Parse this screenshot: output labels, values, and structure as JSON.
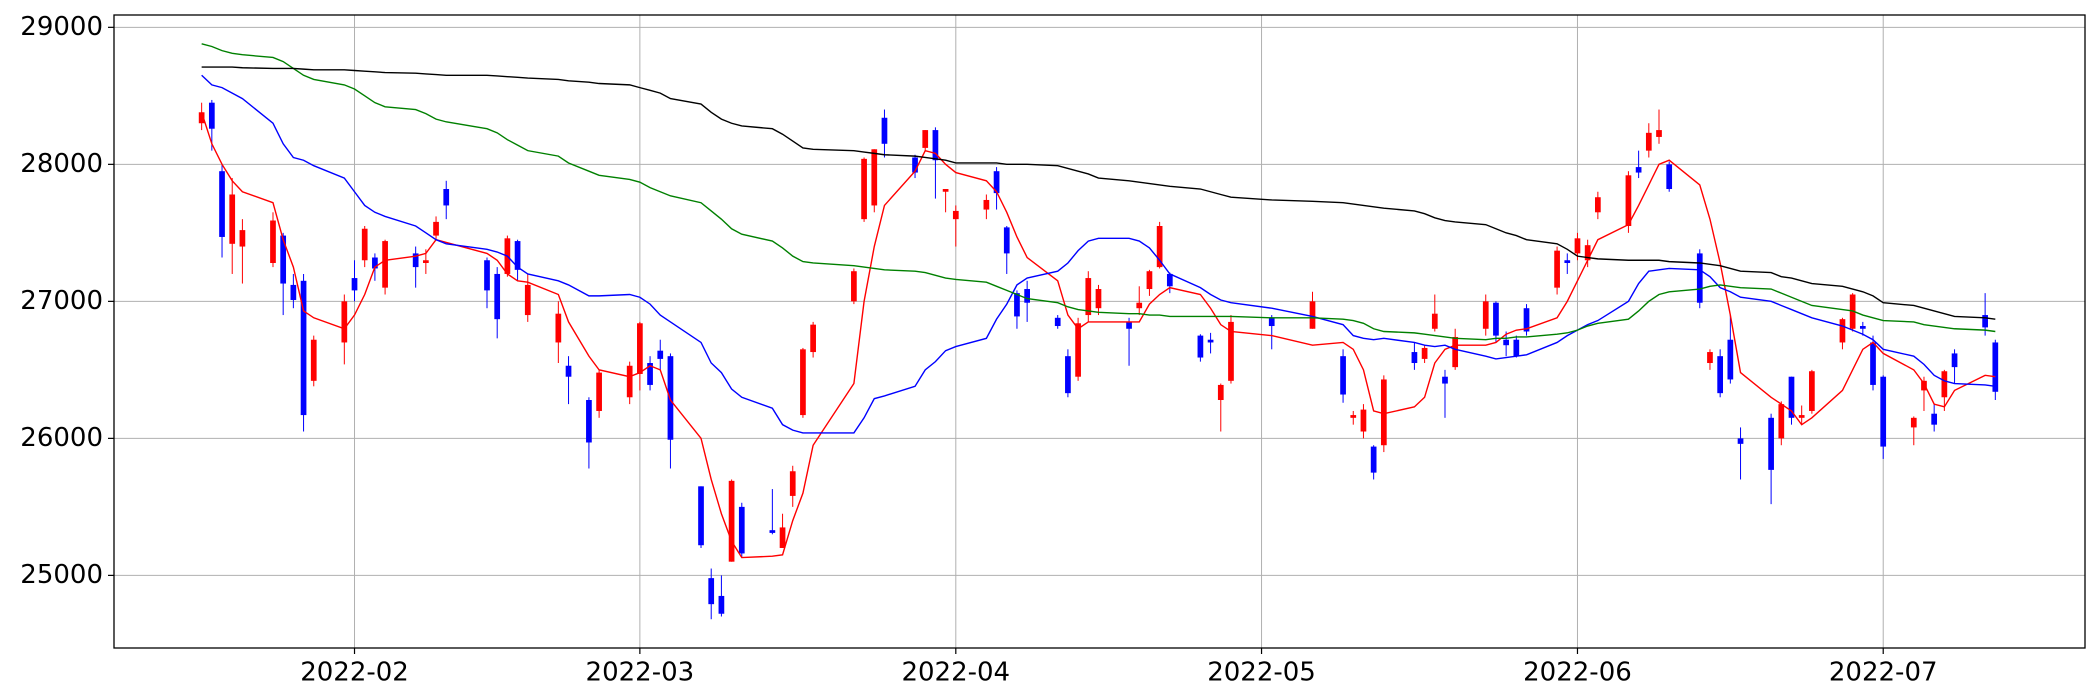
{
  "chart_data": {
    "type": "candlestick",
    "grid": true,
    "up_color": "#ff0000",
    "down_color": "#0000ff",
    "xlim": [
      7.4,
      200.8
    ],
    "ylim": [
      24470,
      29090
    ],
    "xticks": [
      {
        "value": 31,
        "label": "2022-02"
      },
      {
        "value": 59,
        "label": "2022-03"
      },
      {
        "value": 90,
        "label": "2022-04"
      },
      {
        "value": 120,
        "label": "2022-05"
      },
      {
        "value": 151,
        "label": "2022-06"
      },
      {
        "value": 181,
        "label": "2022-07"
      }
    ],
    "yticks": [
      25000,
      26000,
      27000,
      28000,
      29000
    ],
    "x": [
      16,
      17,
      18,
      19,
      20,
      23,
      24,
      25,
      26,
      27,
      30,
      31,
      32,
      33,
      34,
      37,
      38,
      39,
      40,
      44,
      45,
      46,
      47,
      48,
      51,
      52,
      54,
      55,
      58,
      59,
      60,
      61,
      62,
      65,
      66,
      67,
      68,
      69,
      72,
      73,
      74,
      75,
      76,
      80,
      81,
      82,
      83,
      86,
      87,
      88,
      89,
      90,
      93,
      94,
      95,
      96,
      97,
      100,
      101,
      102,
      103,
      104,
      107,
      108,
      109,
      110,
      111,
      114,
      115,
      116,
      117,
      121,
      125,
      128,
      129,
      130,
      131,
      132,
      135,
      136,
      137,
      138,
      139,
      142,
      143,
      144,
      145,
      146,
      149,
      150,
      151,
      152,
      153,
      156,
      157,
      158,
      159,
      160,
      163,
      164,
      165,
      166,
      167,
      170,
      171,
      172,
      173,
      174,
      177,
      178,
      179,
      180,
      181,
      184,
      185,
      186,
      187,
      188,
      191,
      192
    ],
    "open": [
      28300,
      28450,
      27950,
      27420,
      27400,
      27280,
      27480,
      27120,
      27150,
      26420,
      26700,
      27170,
      27300,
      27320,
      27100,
      27350,
      27280,
      27480,
      27820,
      27300,
      27200,
      27200,
      27440,
      26900,
      26700,
      26530,
      26280,
      26200,
      26300,
      26470,
      26550,
      26640,
      26600,
      25650,
      24980,
      24850,
      25100,
      25500,
      25330,
      25200,
      25580,
      26170,
      26630,
      27000,
      27600,
      27700,
      28340,
      28050,
      28120,
      28250,
      27800,
      27600,
      27670,
      27950,
      27540,
      27060,
      27090,
      26880,
      26600,
      26450,
      26900,
      26950,
      26850,
      26950,
      27090,
      27250,
      27200,
      26750,
      26720,
      26280,
      26420,
      26880,
      26800,
      26600,
      26150,
      26050,
      25940,
      25950,
      26630,
      26580,
      26800,
      26450,
      26520,
      26800,
      26990,
      26720,
      26720,
      26950,
      27100,
      27300,
      27350,
      27300,
      27650,
      27550,
      27980,
      28100,
      28200,
      28000,
      27350,
      26550,
      26600,
      26720,
      26000,
      26150,
      26000,
      26450,
      26150,
      26200,
      26700,
      26800,
      26820,
      26700,
      26450,
      26080,
      26350,
      26180,
      26300,
      26620,
      26900,
      26700
    ],
    "high": [
      28450,
      28470,
      28000,
      27900,
      27600,
      27650,
      27500,
      27200,
      27200,
      26750,
      27050,
      27300,
      27550,
      27350,
      27450,
      27400,
      27380,
      27620,
      27880,
      27320,
      27250,
      27480,
      27450,
      27200,
      27000,
      26600,
      26300,
      26500,
      26560,
      26850,
      26600,
      26720,
      26620,
      25650,
      25050,
      25000,
      25700,
      25530,
      25630,
      25450,
      25800,
      26660,
      26850,
      27240,
      28050,
      28110,
      28400,
      28070,
      28250,
      28270,
      27820,
      27700,
      27780,
      27980,
      27550,
      27080,
      27150,
      26900,
      26650,
      26880,
      27220,
      27120,
      26880,
      27110,
      27230,
      27580,
      27210,
      26760,
      26770,
      26400,
      26900,
      26900,
      27070,
      26650,
      26200,
      26250,
      25950,
      26460,
      26700,
      26680,
      27050,
      26500,
      26800,
      27050,
      27000,
      26780,
      26750,
      26980,
      27400,
      27350,
      27500,
      27450,
      27800,
      27950,
      28100,
      28300,
      28400,
      28020,
      27380,
      26650,
      26650,
      26900,
      26080,
      26180,
      26270,
      26450,
      26240,
      26500,
      26880,
      27060,
      26850,
      26750,
      26460,
      26160,
      26450,
      26250,
      26500,
      26650,
      27060,
      26720
    ],
    "low": [
      28250,
      28100,
      27320,
      27200,
      27130,
      27250,
      26900,
      26950,
      26050,
      26380,
      26540,
      27000,
      27250,
      27150,
      27050,
      27100,
      27200,
      27450,
      27600,
      26950,
      26730,
      27180,
      27150,
      26850,
      26550,
      26250,
      25780,
      26150,
      26250,
      26350,
      26350,
      26500,
      25780,
      25200,
      24680,
      24700,
      25100,
      25130,
      25300,
      25200,
      25500,
      26150,
      26590,
      26980,
      27580,
      27650,
      28050,
      27900,
      28100,
      27750,
      27650,
      27400,
      27600,
      27670,
      27200,
      26800,
      26850,
      26800,
      26300,
      26420,
      26850,
      26900,
      26530,
      26900,
      27040,
      27240,
      27060,
      26560,
      26620,
      26050,
      26400,
      26650,
      26800,
      26260,
      26100,
      26000,
      25700,
      25900,
      26500,
      26550,
      26780,
      26150,
      26500,
      26750,
      26700,
      26600,
      26590,
      26750,
      27050,
      27200,
      27300,
      27250,
      27600,
      27500,
      27900,
      28050,
      28150,
      27800,
      26950,
      26500,
      26300,
      26400,
      25700,
      25520,
      25950,
      26100,
      26100,
      26180,
      26650,
      26780,
      26750,
      26350,
      25850,
      25950,
      26200,
      26050,
      26200,
      26400,
      26750,
      26280
    ],
    "close": [
      28380,
      28260,
      27470,
      27780,
      27520,
      27590,
      27130,
      27010,
      26170,
      26720,
      27000,
      27080,
      27530,
      27240,
      27440,
      27250,
      27300,
      27580,
      27700,
      27080,
      26870,
      27460,
      27230,
      27120,
      26910,
      26450,
      25970,
      26480,
      26530,
      26840,
      26390,
      26580,
      25990,
      25220,
      24790,
      24720,
      25690,
      25160,
      25310,
      25350,
      25760,
      26650,
      26830,
      27220,
      28040,
      28110,
      28150,
      27940,
      28250,
      28030,
      27820,
      27660,
      27740,
      27790,
      27350,
      26890,
      26990,
      26820,
      26330,
      26840,
      27170,
      27090,
      26800,
      26990,
      27220,
      27550,
      27110,
      26590,
      26700,
      26390,
      26850,
      26820,
      27000,
      26320,
      26170,
      26210,
      25750,
      26430,
      26550,
      26660,
      26910,
      26400,
      26740,
      27000,
      26750,
      26680,
      26600,
      26780,
      27370,
      27280,
      27460,
      27410,
      27760,
      27920,
      27940,
      28230,
      28250,
      27820,
      26990,
      26630,
      26330,
      26430,
      25960,
      25770,
      26250,
      26150,
      26170,
      26490,
      26870,
      27050,
      26800,
      26390,
      25940,
      26150,
      26420,
      26100,
      26490,
      26520,
      26810,
      26340
    ],
    "series": [
      {
        "color": "#ff0000",
        "values": [
          28380,
          28150,
          28000,
          27880,
          27800,
          27720,
          27450,
          27250,
          26930,
          26880,
          26800,
          26900,
          27050,
          27250,
          27300,
          27330,
          27350,
          27450,
          27430,
          27350,
          27300,
          27200,
          27150,
          27140,
          27050,
          26850,
          26600,
          26500,
          26450,
          26480,
          26530,
          26500,
          26280,
          26000,
          25700,
          25450,
          25250,
          25130,
          25140,
          25150,
          25400,
          25600,
          25950,
          26400,
          27000,
          27400,
          27700,
          27950,
          28100,
          28080,
          28000,
          27940,
          27880,
          27800,
          27650,
          27470,
          27320,
          27150,
          26900,
          26800,
          26850,
          26850,
          26850,
          26850,
          26980,
          27050,
          27100,
          27050,
          26950,
          26830,
          26780,
          26750,
          26680,
          26700,
          26650,
          26500,
          26200,
          26180,
          26230,
          26300,
          26550,
          26650,
          26680,
          26680,
          26700,
          26760,
          26790,
          26800,
          26880,
          27000,
          27150,
          27300,
          27450,
          27560,
          27700,
          27850,
          28000,
          28030,
          27850,
          27600,
          27280,
          26900,
          26480,
          26300,
          26250,
          26200,
          26100,
          26150,
          26350,
          26500,
          26650,
          26700,
          26620,
          26500,
          26400,
          26250,
          26230,
          26350,
          26460,
          26450
        ]
      },
      {
        "color": "#0000ff",
        "values": [
          28650,
          28580,
          28560,
          28520,
          28480,
          28300,
          28150,
          28050,
          28030,
          27990,
          27900,
          27800,
          27700,
          27650,
          27620,
          27550,
          27500,
          27450,
          27420,
          27380,
          27360,
          27330,
          27250,
          27200,
          27150,
          27120,
          27040,
          27040,
          27050,
          27030,
          26980,
          26900,
          26850,
          26700,
          26550,
          26480,
          26360,
          26300,
          26220,
          26100,
          26060,
          26040,
          26040,
          26040,
          26150,
          26290,
          26310,
          26380,
          26500,
          26560,
          26640,
          26670,
          26730,
          26870,
          26980,
          27120,
          27170,
          27220,
          27280,
          27370,
          27440,
          27460,
          27460,
          27440,
          27390,
          27300,
          27200,
          27100,
          27050,
          27010,
          26990,
          26950,
          26890,
          26830,
          26750,
          26730,
          26720,
          26730,
          26700,
          26680,
          26670,
          26680,
          26650,
          26600,
          26580,
          26590,
          26600,
          26610,
          26700,
          26750,
          26790,
          26830,
          26860,
          27000,
          27130,
          27220,
          27230,
          27240,
          27230,
          27180,
          27100,
          27070,
          27030,
          27000,
          26970,
          26940,
          26910,
          26880,
          26820,
          26790,
          26760,
          26720,
          26650,
          26600,
          26540,
          26460,
          26420,
          26400,
          26390,
          26380
        ]
      },
      {
        "color": "#008000",
        "values": [
          28880,
          28860,
          28830,
          28810,
          28800,
          28780,
          28750,
          28700,
          28650,
          28620,
          28580,
          28550,
          28500,
          28450,
          28420,
          28400,
          28370,
          28330,
          28310,
          28260,
          28230,
          28180,
          28140,
          28100,
          28060,
          28010,
          27950,
          27920,
          27890,
          27870,
          27830,
          27800,
          27770,
          27720,
          27660,
          27600,
          27530,
          27490,
          27440,
          27390,
          27330,
          27290,
          27280,
          27260,
          27250,
          27240,
          27230,
          27220,
          27210,
          27190,
          27170,
          27160,
          27140,
          27110,
          27080,
          27050,
          27020,
          26990,
          26960,
          26940,
          26930,
          26920,
          26910,
          26910,
          26900,
          26900,
          26890,
          26890,
          26890,
          26890,
          26890,
          26880,
          26880,
          26870,
          26860,
          26840,
          26800,
          26780,
          26770,
          26760,
          26750,
          26740,
          26730,
          26720,
          26730,
          26730,
          26740,
          26740,
          26760,
          26770,
          26790,
          26820,
          26840,
          26870,
          26930,
          27000,
          27050,
          27070,
          27090,
          27110,
          27120,
          27110,
          27100,
          27090,
          27060,
          27030,
          27000,
          26970,
          26940,
          26930,
          26900,
          26880,
          26860,
          26850,
          26830,
          26820,
          26810,
          26800,
          26790,
          26780
        ]
      },
      {
        "color": "#000000",
        "values": [
          28710,
          28710,
          28710,
          28710,
          28705,
          28700,
          28700,
          28700,
          28695,
          28690,
          28690,
          28685,
          28680,
          28675,
          28670,
          28665,
          28660,
          28655,
          28650,
          28650,
          28645,
          28640,
          28635,
          28630,
          28620,
          28610,
          28600,
          28590,
          28580,
          28560,
          28540,
          28520,
          28480,
          28440,
          28380,
          28330,
          28300,
          28280,
          28260,
          28220,
          28170,
          28120,
          28110,
          28100,
          28090,
          28080,
          28070,
          28060,
          28050,
          28040,
          28030,
          28010,
          28010,
          28010,
          28000,
          28000,
          28000,
          27990,
          27970,
          27950,
          27930,
          27900,
          27880,
          27870,
          27860,
          27850,
          27840,
          27820,
          27800,
          27780,
          27760,
          27740,
          27730,
          27720,
          27710,
          27700,
          27690,
          27680,
          27660,
          27640,
          27610,
          27590,
          27580,
          27560,
          27530,
          27500,
          27480,
          27450,
          27420,
          27380,
          27330,
          27320,
          27310,
          27300,
          27300,
          27300,
          27300,
          27290,
          27280,
          27270,
          27260,
          27240,
          27220,
          27210,
          27180,
          27170,
          27150,
          27130,
          27110,
          27090,
          27070,
          27040,
          26990,
          26970,
          26950,
          26930,
          26910,
          26890,
          26880,
          26870
        ]
      }
    ]
  }
}
